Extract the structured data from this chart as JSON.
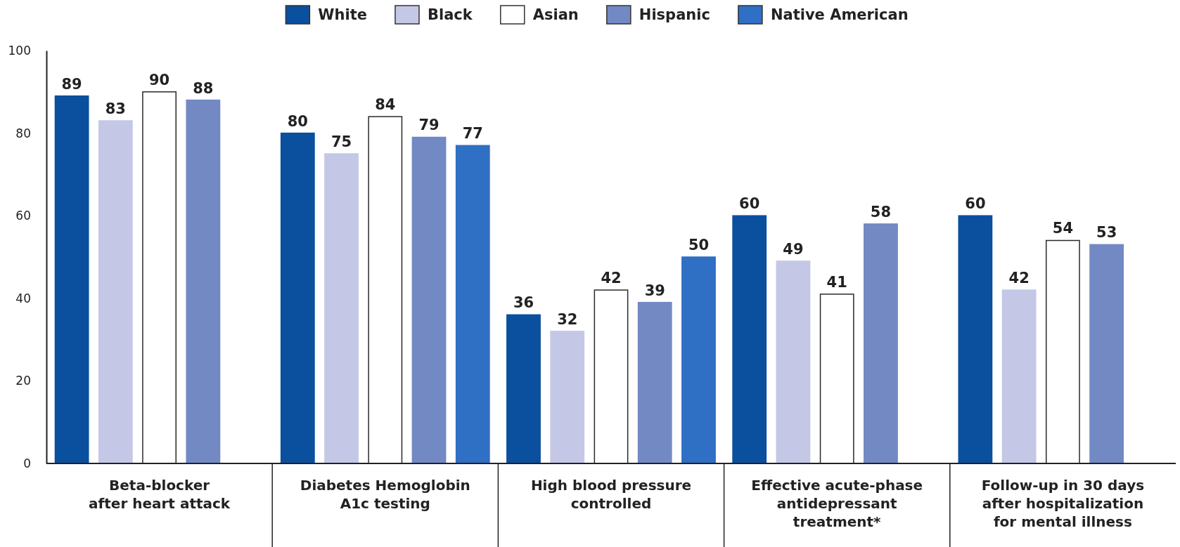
{
  "chart_data": {
    "type": "bar",
    "categories": [
      "Beta-blocker\nafter heart attack",
      "Diabetes Hemoglobin\nA1c testing",
      "High blood pressure\ncontrolled",
      "Effective acute-phase\nantidepressant\ntreatment*",
      "Follow-up in 30 days\nafter hospitalization\nfor mental illness"
    ],
    "series": [
      {
        "name": "White",
        "color": "#0b4f9f",
        "values": [
          89,
          80,
          36,
          60,
          60
        ]
      },
      {
        "name": "Black",
        "color": "#c4c8e6",
        "values": [
          83,
          75,
          32,
          49,
          42
        ]
      },
      {
        "name": "Asian",
        "color": "#ffffff",
        "values": [
          90,
          84,
          42,
          41,
          54
        ]
      },
      {
        "name": "Hispanic",
        "color": "#7289c4",
        "values": [
          88,
          79,
          39,
          58,
          53
        ]
      },
      {
        "name": "Native American",
        "color": "#2f6fc4",
        "values": [
          null,
          77,
          50,
          null,
          null
        ]
      }
    ],
    "ylim": [
      0,
      100
    ],
    "yticks": [
      0,
      20,
      40,
      60,
      80,
      100
    ],
    "grid": false,
    "legend": "top",
    "data_labels": true
  }
}
